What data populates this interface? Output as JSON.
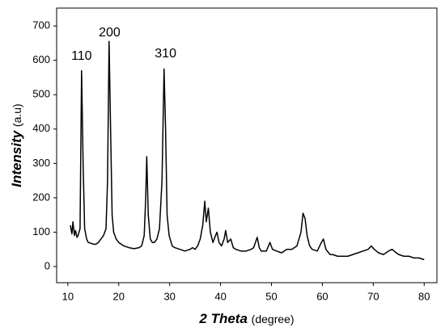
{
  "chart_data": {
    "type": "line",
    "xlabel": "2 Theta",
    "xlabel_unit": "(degree)",
    "ylabel": "Intensity",
    "ylabel_unit": "(a.u)",
    "annotations": [
      {
        "text": "110",
        "x": 12.7,
        "y": 612
      },
      {
        "text": "200",
        "x": 18.2,
        "y": 680
      },
      {
        "text": "310",
        "x": 29.2,
        "y": 618
      }
    ],
    "xlim": [
      7.8,
      82.5
    ],
    "ylim": [
      -47,
      752
    ],
    "xticks": [
      10,
      20,
      30,
      40,
      50,
      60,
      70,
      80
    ],
    "yticks": [
      0,
      100,
      200,
      300,
      400,
      500,
      600,
      700
    ],
    "color": "#000000",
    "x": [
      10.5,
      10.8,
      11,
      11.3,
      11.5,
      11.8,
      12,
      12.4,
      12.7,
      13,
      13.3,
      13.7,
      14,
      14.5,
      15,
      15.5,
      16,
      16.5,
      17,
      17.5,
      17.8,
      18.1,
      18.4,
      18.7,
      19,
      19.5,
      20,
      21,
      22,
      23,
      24,
      24.5,
      25,
      25.3,
      25.5,
      25.8,
      26.2,
      26.6,
      27,
      27.5,
      28,
      28.5,
      28.9,
      29.2,
      29.5,
      29.9,
      30.5,
      31,
      32,
      33,
      34,
      34.5,
      35,
      35.5,
      36,
      36.5,
      36.9,
      37.2,
      37.6,
      38,
      38.5,
      39,
      39.3,
      39.7,
      40.2,
      40.7,
      41,
      41.4,
      42,
      42.5,
      43,
      44,
      45,
      46,
      46.5,
      47.2,
      47.6,
      48,
      49,
      49.7,
      50.2,
      51,
      52,
      53,
      54,
      55,
      55.8,
      56.2,
      56.6,
      57,
      57.5,
      58,
      59,
      59.8,
      60.2,
      60.7,
      61.5,
      62,
      63,
      64,
      65,
      66,
      67,
      68,
      69,
      69.6,
      70.2,
      71,
      72,
      73,
      73.7,
      74.5,
      75,
      76,
      77,
      78,
      79,
      80
    ],
    "values": [
      120,
      95,
      130,
      90,
      105,
      85,
      90,
      110,
      570,
      300,
      110,
      80,
      70,
      68,
      65,
      65,
      70,
      80,
      90,
      110,
      250,
      655,
      400,
      150,
      100,
      80,
      70,
      60,
      55,
      52,
      55,
      60,
      90,
      200,
      320,
      150,
      80,
      70,
      70,
      80,
      110,
      250,
      575,
      400,
      150,
      90,
      60,
      55,
      50,
      45,
      50,
      55,
      50,
      60,
      80,
      120,
      190,
      130,
      170,
      100,
      70,
      90,
      100,
      70,
      60,
      80,
      105,
      70,
      80,
      55,
      50,
      45,
      45,
      50,
      55,
      85,
      55,
      45,
      45,
      70,
      50,
      45,
      40,
      50,
      50,
      60,
      100,
      155,
      140,
      90,
      60,
      50,
      45,
      70,
      80,
      50,
      35,
      35,
      30,
      30,
      30,
      35,
      40,
      45,
      50,
      60,
      50,
      40,
      35,
      45,
      50,
      40,
      35,
      30,
      30,
      25,
      25,
      20
    ]
  }
}
